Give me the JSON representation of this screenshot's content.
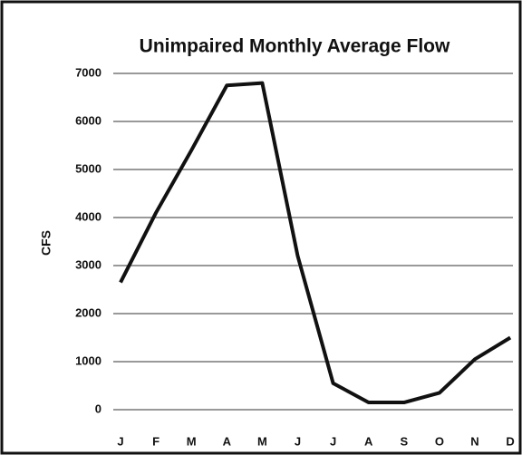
{
  "chart_data": {
    "type": "line",
    "title": "Unimpaired Monthly Average Flow",
    "y_label": "CFS",
    "categories": [
      "J",
      "F",
      "M",
      "A",
      "M",
      "J",
      "J",
      "A",
      "S",
      "O",
      "N",
      "D"
    ],
    "series": [
      {
        "name": "Flow",
        "color": "#111111",
        "values": [
          2650,
          4100,
          5400,
          6750,
          6800,
          3200,
          550,
          150,
          150,
          350,
          1050,
          1500
        ]
      }
    ],
    "ylim": [
      0,
      7000
    ],
    "yticks": [
      0,
      1000,
      2000,
      3000,
      4000,
      5000,
      6000,
      7000
    ],
    "grid": true
  }
}
